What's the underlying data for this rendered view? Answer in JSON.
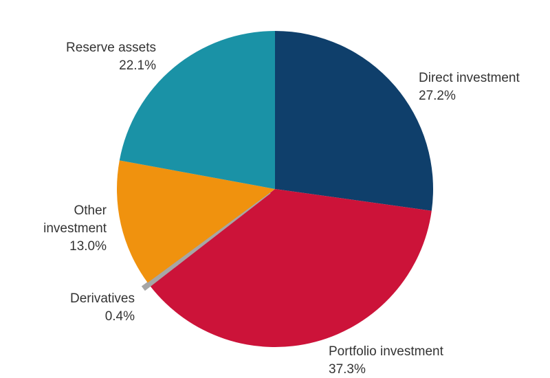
{
  "chart_data": {
    "type": "pie",
    "start": "top",
    "direction": "clockwise",
    "slices": [
      {
        "label": "Direct investment",
        "value": 27.2,
        "value_label": "27.2%",
        "color": "#0f3f6b"
      },
      {
        "label": "Portfolio investment",
        "value": 37.3,
        "value_label": "37.3%",
        "color": "#cc1339"
      },
      {
        "label": "Derivatives",
        "value": 0.4,
        "value_label": "0.4%",
        "color": "#a6a6a6",
        "exploded": true
      },
      {
        "label": "Other investment",
        "value": 13.0,
        "value_label": "13.0%",
        "color": "#f0920e"
      },
      {
        "label": "Reserve assets",
        "value": 22.1,
        "value_label": "22.1%",
        "color": "#1a92a6"
      }
    ]
  }
}
